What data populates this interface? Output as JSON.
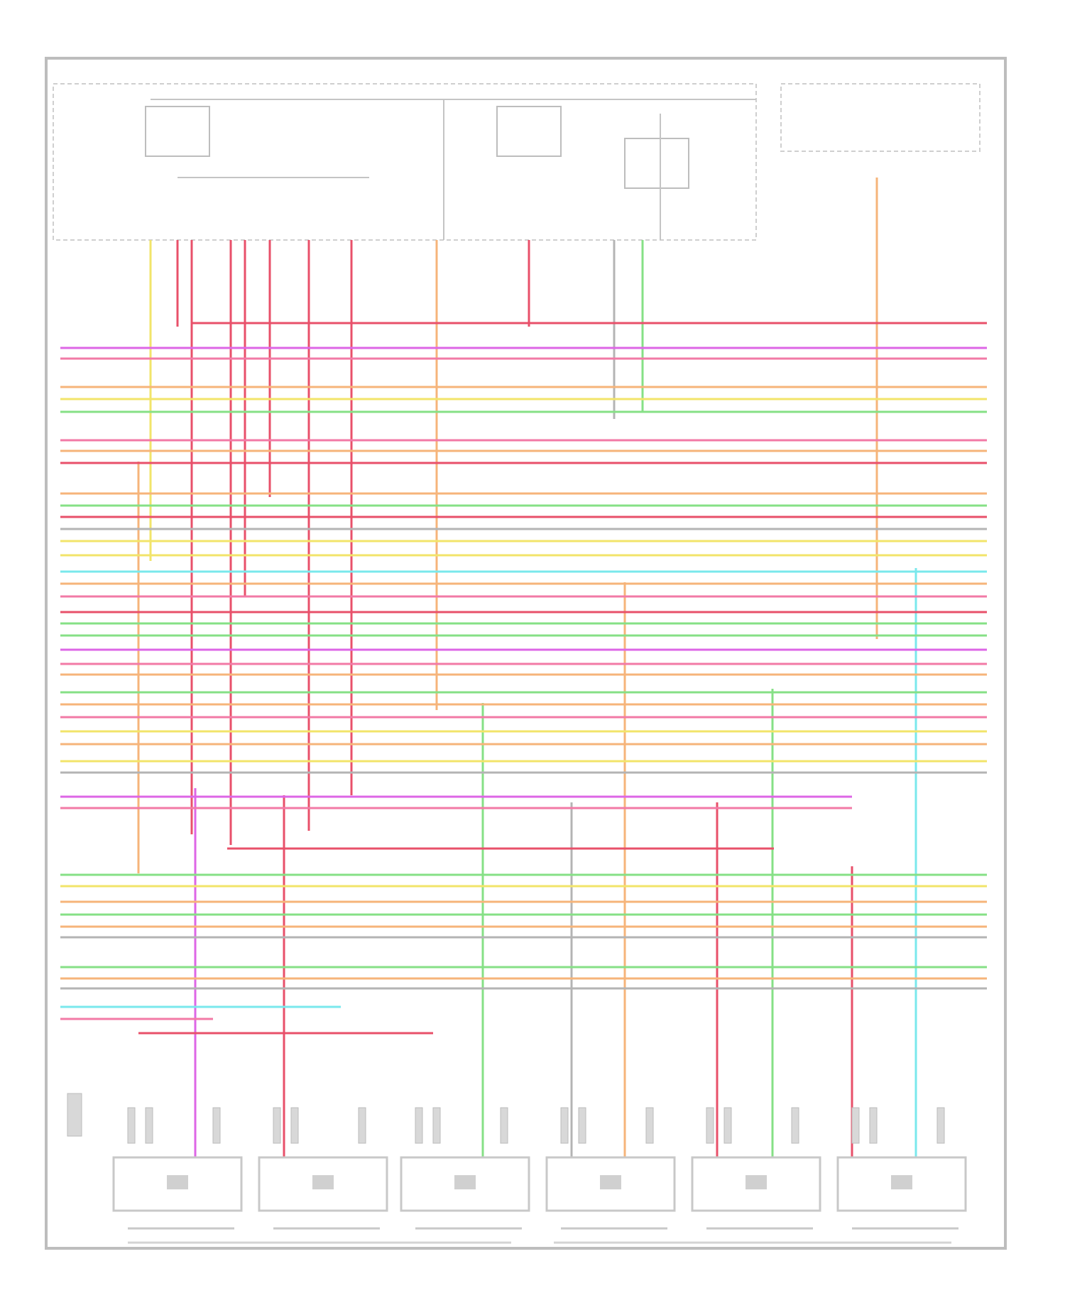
{
  "diagram": {
    "type": "wiring-diagram",
    "text_legible": false,
    "wire_colors": {
      "pink": "#f27aa6",
      "red": "#e8506a",
      "violet": "#dd66e6",
      "green": "#86e086",
      "yellow": "#f2e46a",
      "orange": "#f6b47a",
      "cyan": "#7ae8ec",
      "gray": "#b4b4b4"
    },
    "module_count": 6,
    "frame_color": "#bdbdbd"
  }
}
